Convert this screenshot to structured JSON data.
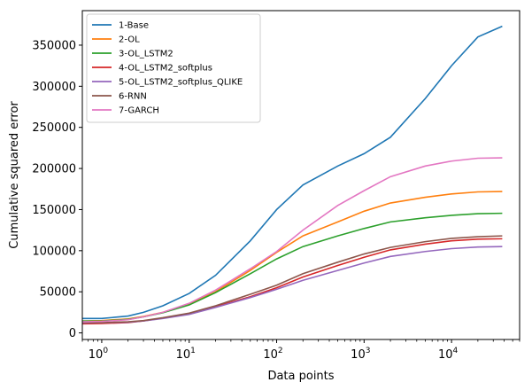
{
  "chart_data": {
    "type": "line",
    "title": "",
    "xlabel": "Data points",
    "ylabel": "Cumulative squared error",
    "xscale": "log",
    "xlim": [
      0.6,
      60000
    ],
    "ylim": [
      -8000,
      392000
    ],
    "xticks": [
      {
        "value": 1,
        "base": "10",
        "exp": "0"
      },
      {
        "value": 10,
        "base": "10",
        "exp": "1"
      },
      {
        "value": 100,
        "base": "10",
        "exp": "2"
      },
      {
        "value": 1000,
        "base": "10",
        "exp": "3"
      },
      {
        "value": 10000,
        "base": "10",
        "exp": "4"
      }
    ],
    "yticks": [
      0,
      50000,
      100000,
      150000,
      200000,
      250000,
      300000,
      350000
    ],
    "grid": false,
    "legend_position": "top-left",
    "series": [
      {
        "name": "1-Base",
        "color": "#1f77b4",
        "points": [
          [
            0.6,
            17500
          ],
          [
            1,
            17500
          ],
          [
            2,
            20500
          ],
          [
            3,
            25000
          ],
          [
            5,
            33000
          ],
          [
            10,
            48000
          ],
          [
            20,
            70000
          ],
          [
            50,
            112000
          ],
          [
            100,
            150000
          ],
          [
            200,
            180000
          ],
          [
            500,
            203000
          ],
          [
            1000,
            218000
          ],
          [
            2000,
            238000
          ],
          [
            5000,
            285000
          ],
          [
            10000,
            325000
          ],
          [
            20000,
            360000
          ],
          [
            38000,
            373000
          ]
        ]
      },
      {
        "name": "2-OL",
        "color": "#ff7f0e",
        "points": [
          [
            0.6,
            14500
          ],
          [
            1,
            15000
          ],
          [
            2,
            17000
          ],
          [
            3,
            20000
          ],
          [
            5,
            25000
          ],
          [
            10,
            35000
          ],
          [
            20,
            50000
          ],
          [
            50,
            76000
          ],
          [
            100,
            98000
          ],
          [
            200,
            118000
          ],
          [
            500,
            135000
          ],
          [
            1000,
            148000
          ],
          [
            2000,
            158000
          ],
          [
            5000,
            165000
          ],
          [
            10000,
            169000
          ],
          [
            20000,
            171500
          ],
          [
            38000,
            172000
          ]
        ]
      },
      {
        "name": "3-OL_LSTM2",
        "color": "#2ca02c",
        "points": [
          [
            0.6,
            14500
          ],
          [
            1,
            14500
          ],
          [
            2,
            16500
          ],
          [
            3,
            19500
          ],
          [
            5,
            24500
          ],
          [
            10,
            34000
          ],
          [
            20,
            49000
          ],
          [
            50,
            72000
          ],
          [
            100,
            90000
          ],
          [
            200,
            105000
          ],
          [
            500,
            118000
          ],
          [
            1000,
            127000
          ],
          [
            2000,
            135000
          ],
          [
            5000,
            140000
          ],
          [
            10000,
            143000
          ],
          [
            20000,
            145000
          ],
          [
            38000,
            145500
          ]
        ]
      },
      {
        "name": "4-OL_LSTM2_softplus",
        "color": "#d62728",
        "points": [
          [
            0.6,
            11000
          ],
          [
            1,
            11500
          ],
          [
            2,
            12500
          ],
          [
            3,
            14500
          ],
          [
            5,
            18000
          ],
          [
            10,
            23500
          ],
          [
            20,
            32000
          ],
          [
            50,
            44000
          ],
          [
            100,
            55000
          ],
          [
            200,
            68000
          ],
          [
            500,
            82000
          ],
          [
            1000,
            92000
          ],
          [
            2000,
            101000
          ],
          [
            5000,
            108000
          ],
          [
            10000,
            112000
          ],
          [
            20000,
            114000
          ],
          [
            38000,
            114500
          ]
        ]
      },
      {
        "name": "5-OL_LSTM2_softplus_QLIKE",
        "color": "#9467bd",
        "points": [
          [
            0.6,
            12000
          ],
          [
            1,
            12500
          ],
          [
            2,
            13000
          ],
          [
            3,
            14500
          ],
          [
            5,
            17500
          ],
          [
            10,
            22500
          ],
          [
            20,
            31000
          ],
          [
            50,
            43000
          ],
          [
            100,
            53000
          ],
          [
            200,
            64000
          ],
          [
            500,
            76000
          ],
          [
            1000,
            85000
          ],
          [
            2000,
            93000
          ],
          [
            5000,
            99000
          ],
          [
            10000,
            102500
          ],
          [
            20000,
            104500
          ],
          [
            38000,
            105000
          ]
        ]
      },
      {
        "name": "6-RNN",
        "color": "#8c564b",
        "points": [
          [
            0.6,
            12500
          ],
          [
            1,
            12500
          ],
          [
            2,
            13500
          ],
          [
            3,
            15000
          ],
          [
            5,
            18500
          ],
          [
            10,
            24000
          ],
          [
            20,
            33000
          ],
          [
            50,
            47000
          ],
          [
            100,
            58000
          ],
          [
            200,
            72000
          ],
          [
            500,
            86000
          ],
          [
            1000,
            96000
          ],
          [
            2000,
            104000
          ],
          [
            5000,
            111000
          ],
          [
            10000,
            115000
          ],
          [
            20000,
            117000
          ],
          [
            38000,
            118000
          ]
        ]
      },
      {
        "name": "7-GARCH",
        "color": "#e377c2",
        "points": [
          [
            0.6,
            13500
          ],
          [
            1,
            14000
          ],
          [
            2,
            16000
          ],
          [
            3,
            19500
          ],
          [
            5,
            25000
          ],
          [
            10,
            36000
          ],
          [
            20,
            52000
          ],
          [
            50,
            78000
          ],
          [
            100,
            99000
          ],
          [
            200,
            125000
          ],
          [
            500,
            155000
          ],
          [
            1000,
            173000
          ],
          [
            2000,
            190000
          ],
          [
            5000,
            203000
          ],
          [
            10000,
            209000
          ],
          [
            20000,
            212500
          ],
          [
            38000,
            213000
          ]
        ]
      }
    ]
  }
}
